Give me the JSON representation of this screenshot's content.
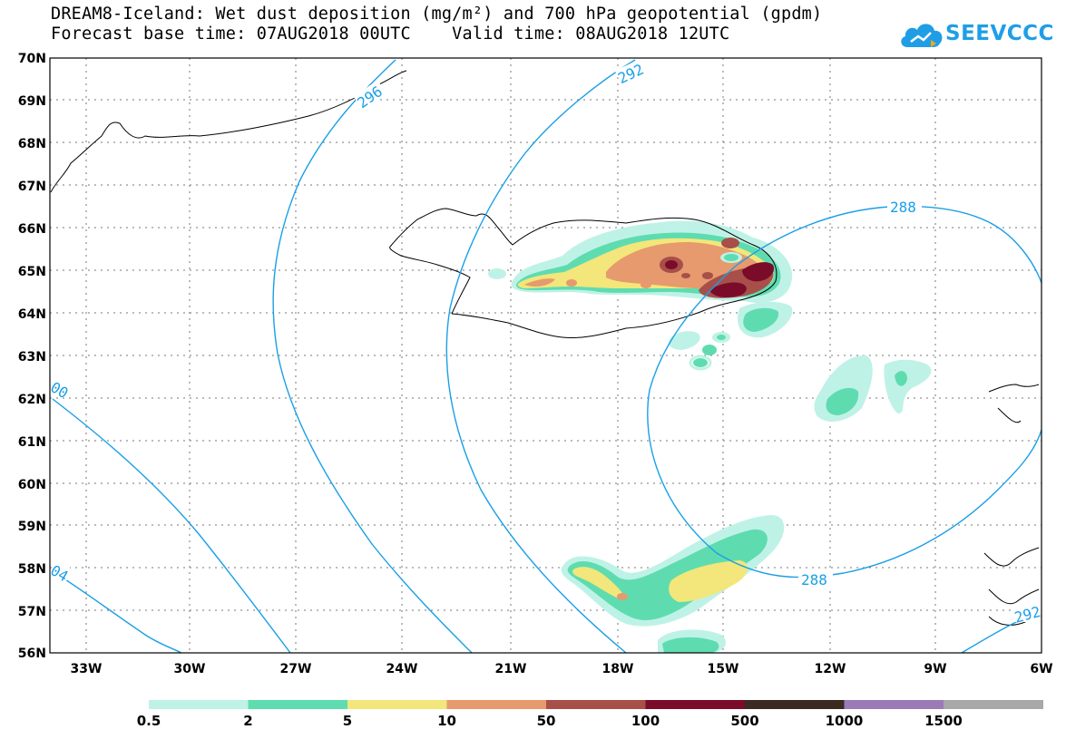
{
  "title": {
    "line1": "DREAM8-Iceland: Wet dust deposition (mg/m²) and 700 hPa geopotential (gpdm)",
    "line2": "Forecast base time: 07AUG2018 00UTC    Valid time: 08AUG2018 12UTC"
  },
  "logo": {
    "text": "SEEVCCC",
    "icon": "cloud-logo-icon"
  },
  "map": {
    "lat_labels": [
      "70N",
      "69N",
      "68N",
      "67N",
      "66N",
      "65N",
      "64N",
      "63N",
      "62N",
      "61N",
      "60N",
      "59N",
      "58N",
      "57N",
      "56N"
    ],
    "lon_labels": [
      "33W",
      "30W",
      "27W",
      "24W",
      "21W",
      "18W",
      "15W",
      "12W",
      "9W",
      "6W"
    ],
    "contour_labels": [
      {
        "text": "296",
        "id": "c296"
      },
      {
        "text": "292",
        "id": "c292a"
      },
      {
        "text": "288",
        "id": "c288a"
      },
      {
        "text": "288",
        "id": "c288b"
      },
      {
        "text": "00",
        "id": "c300"
      },
      {
        "text": "04",
        "id": "c304"
      },
      {
        "text": "292",
        "id": "c292b"
      }
    ],
    "contour_color": "#1a9fe6"
  },
  "colorbar": {
    "labels": [
      "0.5",
      "2",
      "5",
      "10",
      "50",
      "100",
      "500",
      "1000",
      "1500"
    ],
    "colors": [
      "#bff2e6",
      "#5edcb0",
      "#f3e67a",
      "#e69a6e",
      "#a84f4a",
      "#7a0c2a",
      "#3a2a22",
      "#9c7ab8",
      "#a8a8a8"
    ]
  }
}
